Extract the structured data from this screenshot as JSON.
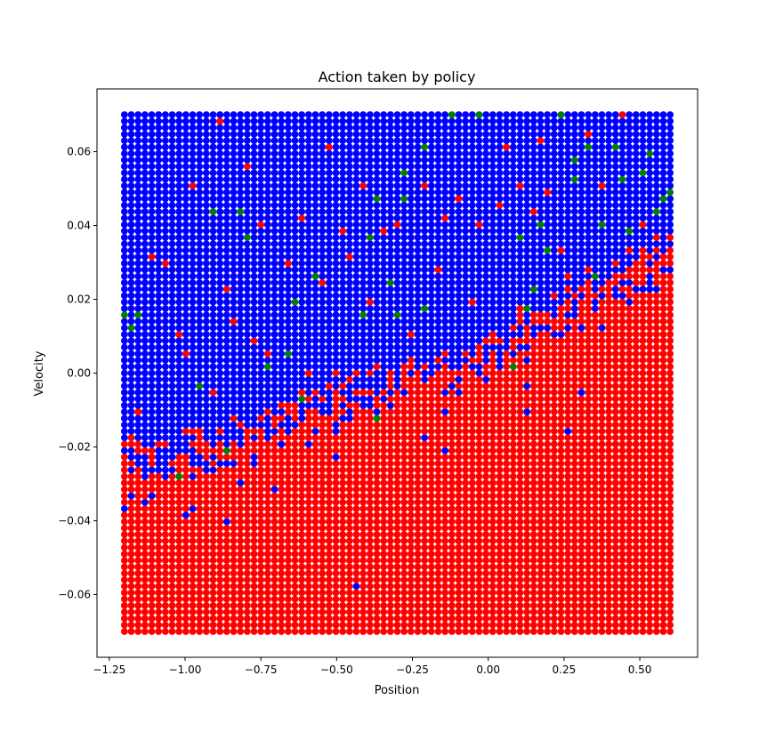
{
  "chart_data": {
    "type": "scatter",
    "title": "Action taken by policy",
    "xlabel": "Position",
    "ylabel": "Velocity",
    "xlim": [
      -1.2,
      0.6
    ],
    "ylim": [
      -0.07,
      0.07
    ],
    "x_ticks": [
      -1.25,
      -1.0,
      -0.75,
      -0.5,
      -0.25,
      0.0,
      0.25,
      0.5
    ],
    "x_tick_labels": [
      "−1.25",
      "−1.00",
      "−0.75",
      "−0.50",
      "−0.25",
      "0.00",
      "0.25",
      "0.50"
    ],
    "y_ticks": [
      -0.06,
      -0.04,
      -0.02,
      0.0,
      0.02,
      0.04,
      0.06
    ],
    "y_tick_labels": [
      "−0.06",
      "−0.04",
      "−0.02",
      "0.00",
      "0.02",
      "0.04",
      "0.06"
    ],
    "grid": false,
    "legend": false,
    "grid_points": {
      "x_range": [
        -1.2,
        0.6
      ],
      "y_range": [
        -0.07,
        0.07
      ],
      "x_count": 81,
      "y_count": 81
    },
    "series": [
      {
        "color": "#ff0000"
      },
      {
        "color": "#0000ff"
      },
      {
        "color": "#008000"
      }
    ],
    "decision_boundary": {
      "x": [
        -1.2,
        -1.0,
        -0.75,
        -0.5,
        -0.25,
        0.0,
        0.25,
        0.5,
        0.6
      ],
      "y": [
        -0.024,
        -0.022,
        -0.017,
        -0.008,
        0.0,
        0.004,
        0.018,
        0.028,
        0.032
      ]
    },
    "green_points": [
      [
        -1.2,
        0.015
      ],
      [
        -1.17,
        0.013
      ],
      [
        -1.15,
        0.016
      ],
      [
        -1.02,
        -0.028
      ],
      [
        -0.95,
        -0.003
      ],
      [
        -0.9,
        0.043
      ],
      [
        -0.86,
        -0.021
      ],
      [
        -0.82,
        0.043
      ],
      [
        -0.8,
        0.036
      ],
      [
        -0.73,
        0.001
      ],
      [
        -0.66,
        0.006
      ],
      [
        -0.64,
        0.02
      ],
      [
        -0.61,
        -0.007
      ],
      [
        -0.57,
        0.027
      ],
      [
        -0.42,
        0.016
      ],
      [
        -0.4,
        0.036
      ],
      [
        -0.36,
        0.048
      ],
      [
        -0.36,
        -0.013
      ],
      [
        -0.33,
        0.024
      ],
      [
        -0.3,
        0.016
      ],
      [
        -0.28,
        0.055
      ],
      [
        -0.28,
        0.048
      ],
      [
        -0.22,
        0.018
      ],
      [
        -0.2,
        0.061
      ],
      [
        -0.13,
        0.07
      ],
      [
        -0.04,
        0.07
      ],
      [
        0.08,
        0.001
      ],
      [
        0.1,
        0.036
      ],
      [
        0.12,
        0.018
      ],
      [
        0.14,
        0.022
      ],
      [
        0.17,
        0.04
      ],
      [
        0.2,
        0.033
      ],
      [
        0.25,
        0.07
      ],
      [
        0.28,
        0.058
      ],
      [
        0.28,
        0.052
      ],
      [
        0.32,
        0.061
      ],
      [
        0.35,
        0.027
      ],
      [
        0.38,
        0.041
      ],
      [
        0.43,
        0.061
      ],
      [
        0.44,
        0.052
      ],
      [
        0.47,
        0.038
      ],
      [
        0.5,
        0.054
      ],
      [
        0.53,
        0.059
      ],
      [
        0.55,
        0.043
      ],
      [
        0.58,
        0.047
      ],
      [
        0.6,
        0.049
      ]
    ],
    "red_points_above_boundary": [
      [
        -1.15,
        -0.01
      ],
      [
        -1.1,
        0.031
      ],
      [
        -1.06,
        0.029
      ],
      [
        -1.02,
        0.01
      ],
      [
        -1.0,
        0.005
      ],
      [
        -0.98,
        0.05
      ],
      [
        -0.91,
        -0.006
      ],
      [
        -0.88,
        0.068
      ],
      [
        -0.86,
        0.023
      ],
      [
        -0.84,
        0.014
      ],
      [
        -0.79,
        0.056
      ],
      [
        -0.78,
        0.009
      ],
      [
        -0.75,
        0.04
      ],
      [
        -0.72,
        0.006
      ],
      [
        -0.68,
        -0.008
      ],
      [
        -0.65,
        0.029
      ],
      [
        -0.62,
        0.042
      ],
      [
        -0.6,
        0.0
      ],
      [
        -0.55,
        0.024
      ],
      [
        -0.52,
        0.061
      ],
      [
        -0.49,
        0.038
      ],
      [
        -0.45,
        0.031
      ],
      [
        -0.42,
        0.05
      ],
      [
        -0.39,
        0.02
      ],
      [
        -0.34,
        0.039
      ],
      [
        -0.29,
        0.041
      ],
      [
        -0.25,
        0.01
      ],
      [
        -0.2,
        0.05
      ],
      [
        -0.16,
        0.028
      ],
      [
        -0.14,
        0.042
      ],
      [
        -0.09,
        0.048
      ],
      [
        -0.06,
        0.02
      ],
      [
        -0.02,
        0.041
      ],
      [
        0.03,
        0.046
      ],
      [
        0.06,
        0.061
      ],
      [
        0.1,
        0.05
      ],
      [
        0.14,
        0.044
      ],
      [
        0.17,
        0.063
      ],
      [
        0.2,
        0.049
      ],
      [
        0.23,
        0.034
      ],
      [
        0.29,
        0.058
      ],
      [
        0.33,
        0.064
      ],
      [
        0.38,
        0.05
      ],
      [
        0.41,
        0.03
      ],
      [
        0.45,
        0.07
      ],
      [
        0.5,
        0.041
      ],
      [
        0.56,
        0.036
      ]
    ],
    "blue_points_below_boundary": [
      [
        -1.2,
        -0.036
      ],
      [
        -1.18,
        -0.033
      ],
      [
        -1.13,
        -0.035
      ],
      [
        -1.1,
        -0.033
      ],
      [
        -1.0,
        -0.038
      ],
      [
        -0.98,
        -0.036
      ],
      [
        -0.86,
        -0.04
      ],
      [
        -0.82,
        -0.029
      ],
      [
        -0.7,
        -0.031
      ],
      [
        -0.5,
        -0.022
      ],
      [
        -0.43,
        -0.058
      ],
      [
        -0.36,
        -0.01
      ],
      [
        -0.22,
        -0.017
      ],
      [
        -0.14,
        -0.021
      ],
      [
        -0.15,
        -0.01
      ],
      [
        0.12,
        -0.003
      ],
      [
        0.12,
        -0.01
      ],
      [
        0.26,
        -0.015
      ],
      [
        0.31,
        -0.005
      ],
      [
        0.3,
        0.013
      ],
      [
        0.38,
        0.012
      ],
      [
        0.04,
        0.006
      ],
      [
        0.07,
        0.01
      ],
      [
        -0.05,
        0.005
      ]
    ]
  }
}
